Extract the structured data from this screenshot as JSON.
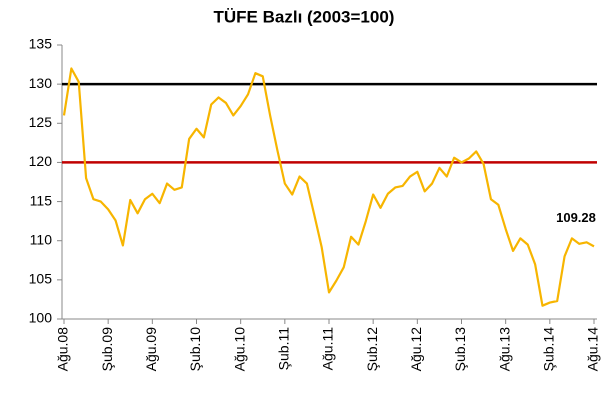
{
  "chart_data": {
    "type": "line",
    "title": "TÜFE Bazlı (2003=100)",
    "categories": [
      "Ağu.08",
      null,
      null,
      null,
      null,
      null,
      "Şub.09",
      null,
      null,
      null,
      null,
      null,
      "Ağu.09",
      null,
      null,
      null,
      null,
      null,
      "Şub.10",
      null,
      null,
      null,
      null,
      null,
      "Ağu.10",
      null,
      null,
      null,
      null,
      null,
      "Şub.11",
      null,
      null,
      null,
      null,
      null,
      "Ağu.11",
      null,
      null,
      null,
      null,
      null,
      "Şub.12",
      null,
      null,
      null,
      null,
      null,
      "Ağu.12",
      null,
      null,
      null,
      null,
      null,
      "Şub.13",
      null,
      null,
      null,
      null,
      null,
      "Ağu.13",
      null,
      null,
      null,
      null,
      null,
      "Şub.14",
      null,
      null,
      null,
      null,
      null,
      "Ağu.14"
    ],
    "series": [
      {
        "color": "#f7b500",
        "values": [
          126,
          132,
          130.3,
          118,
          115.3,
          115,
          114,
          112.6,
          109.4,
          115.2,
          113.5,
          115.3,
          116,
          114.8,
          117.3,
          116.5,
          116.8,
          123,
          124.3,
          123.2,
          127.4,
          128.3,
          127.6,
          126,
          127.2,
          128.7,
          131.4,
          131,
          126,
          121.5,
          117.3,
          115.9,
          118.2,
          117.3,
          113.3,
          109.2,
          103.4,
          104.9,
          106.6,
          110.5,
          109.5,
          112.5,
          115.9,
          114.2,
          116,
          116.8,
          117,
          118.2,
          118.8,
          116.3,
          117.3,
          119.3,
          118.2,
          120.6,
          120,
          120.5,
          121.4,
          119.8,
          115.3,
          114.6,
          111.5,
          108.7,
          110.3,
          109.5,
          107,
          101.7,
          102.1,
          102.3,
          108,
          110.3,
          109.6,
          109.8,
          109.28
        ]
      }
    ],
    "ylim": [
      100,
      135
    ],
    "yticks": [
      100,
      105,
      110,
      115,
      120,
      125,
      130,
      135
    ],
    "reference_lines": [
      {
        "value": 130,
        "color": "#000000"
      },
      {
        "value": 120,
        "color": "#c00000"
      }
    ],
    "grid": false
  }
}
